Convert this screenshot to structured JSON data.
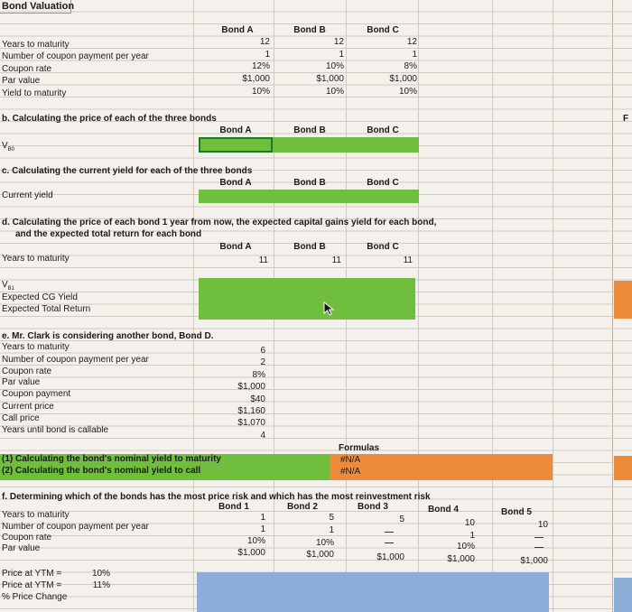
{
  "title": "Bond Valuation",
  "section_a": {
    "headers": [
      "Bond A",
      "Bond B",
      "Bond C"
    ],
    "rows": [
      {
        "label": "Years to maturity",
        "values": [
          "12",
          "12",
          "12"
        ]
      },
      {
        "label": "Number of coupon payment per year",
        "values": [
          "1",
          "1",
          "1"
        ]
      },
      {
        "label": "Coupon rate",
        "values": [
          "12%",
          "10%",
          "8%"
        ]
      },
      {
        "label": "Par value",
        "values": [
          "$1,000",
          "$1,000",
          "$1,000"
        ]
      },
      {
        "label": "Yield to maturity",
        "values": [
          "10%",
          "10%",
          "10%"
        ]
      }
    ]
  },
  "section_b": {
    "title": "b. Calculating the price of each of the three bonds",
    "headers": [
      "Bond A",
      "Bond B",
      "Bond C"
    ],
    "row_label": "V",
    "row_label_sub": "B0"
  },
  "section_c": {
    "title": "c. Calculating the current yield for each of the three bonds",
    "headers": [
      "Bond A",
      "Bond B",
      "Bond C"
    ],
    "row_label": "Current yield"
  },
  "section_d": {
    "title_line1": "d. Calculating the price of each bond 1 year from now, the expected capital gains yield for each bond,",
    "title_line2": "and the expected total return for each bond",
    "headers": [
      "Bond A",
      "Bond B",
      "Bond C"
    ],
    "years_label": "Years to maturity",
    "years_values": [
      "11",
      "11",
      "11"
    ],
    "vb1_label": "V",
    "vb1_sub": "B1",
    "cg_label": "Expected CG Yield",
    "tr_label": "Expected Total Return"
  },
  "section_e": {
    "title": "e. Mr. Clark is considering another bond, Bond D.",
    "rows": [
      {
        "label": "Years to maturity",
        "value": "6"
      },
      {
        "label": "Number of coupon payment per year",
        "value": "2"
      },
      {
        "label": "Coupon rate",
        "value": "8%"
      },
      {
        "label": "Par value",
        "value": "$1,000"
      },
      {
        "label": "Coupon payment",
        "value": "$40"
      },
      {
        "label": "Current price",
        "value": "$1,160"
      },
      {
        "label": "Call price",
        "value": "$1,070"
      },
      {
        "label": "Years until bond is callable",
        "value": "4"
      }
    ],
    "formulas_header": "Formulas",
    "q1": "(1) Calculating the bond's nominal yield to maturity",
    "q1_value": "#N/A",
    "q2": "(2) Calculating the bond's nominal yield to call",
    "q2_value": "#N/A"
  },
  "section_f": {
    "title": "f. Determining which of the bonds has the most price risk and which has the most reinvestment risk",
    "headers": [
      "Bond 1",
      "Bond 2",
      "Bond 3",
      "Bond 4",
      "Bond 5"
    ],
    "rows": [
      {
        "label": "Years to maturity",
        "values": [
          "1",
          "5",
          "5",
          "10",
          "10"
        ]
      },
      {
        "label": "Number of coupon payment per year",
        "values": [
          "1",
          "1",
          "",
          "1",
          ""
        ]
      },
      {
        "label": "Coupon rate",
        "values": [
          "10%",
          "10%",
          "",
          "10%",
          ""
        ]
      },
      {
        "label": "Par value",
        "values": [
          "$1,000",
          "$1,000",
          "$1,000",
          "$1,000",
          "$1,000"
        ]
      }
    ],
    "price_rows": [
      {
        "label": "Price at YTM =",
        "value": "10%"
      },
      {
        "label": "Price at YTM =",
        "value": "11%"
      },
      {
        "label": "% Price Change",
        "value": ""
      }
    ]
  },
  "edge_label": "F",
  "colors": {
    "green": "#6fbe3e",
    "orange": "#ee8b3a",
    "blue": "#8daed8",
    "selected_border": "#1e7a2a"
  }
}
